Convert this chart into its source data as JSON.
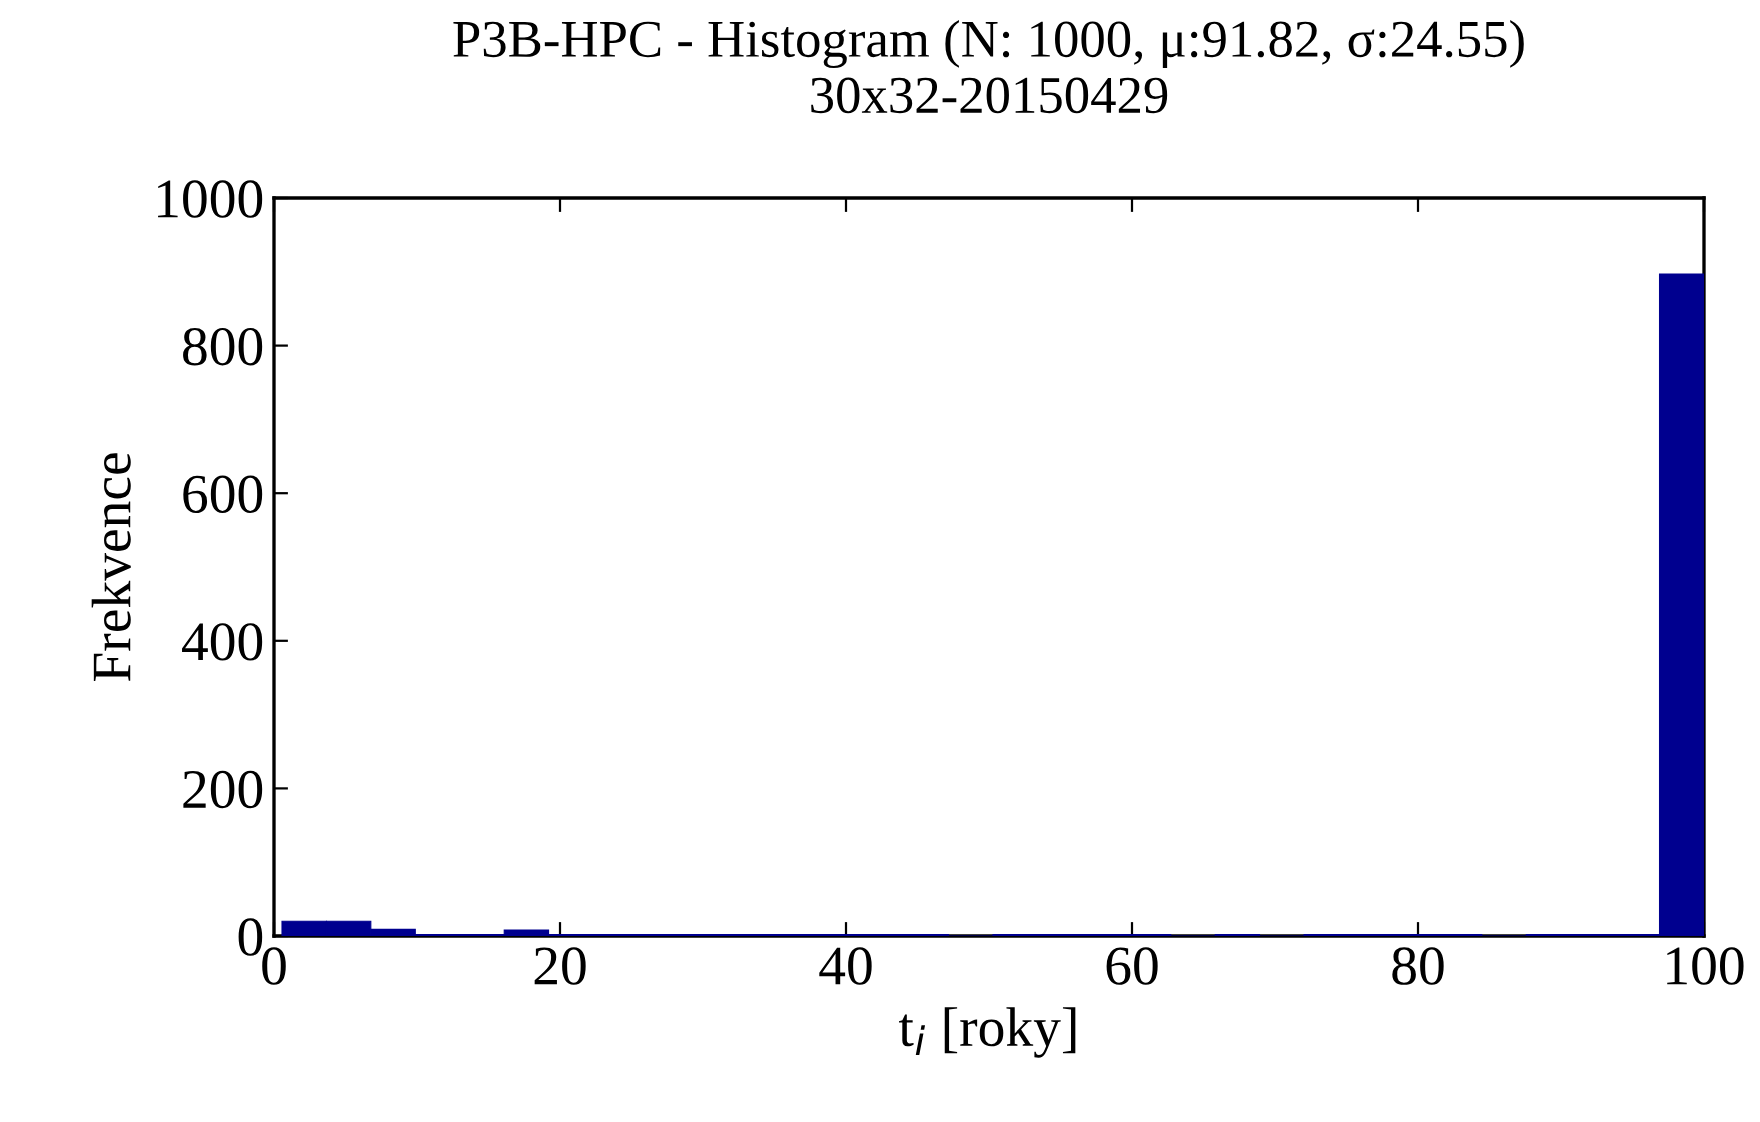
{
  "chart_data": {
    "type": "histogram",
    "title": "P3B-HPC - Histogram (N: 1000, μ:91.82, σ:24.55)",
    "subtitle": "30x32-20150429",
    "xlabel": "t$_{i}$ [roky]",
    "ylabel": "Frekvence",
    "color": "#00008f",
    "bins": [
      0.56,
      3.67,
      6.77,
      9.88,
      12.99,
      16.1,
      19.2,
      22.31,
      25.42,
      28.53,
      31.63,
      34.74,
      37.85,
      40.96,
      44.06,
      47.17,
      50.28,
      53.39,
      56.49,
      59.6,
      62.71,
      65.82,
      68.92,
      72.03,
      75.14,
      78.25,
      81.35,
      84.46,
      87.57,
      90.68,
      93.78,
      96.89,
      100
    ],
    "values": [
      20,
      20,
      9,
      2,
      2,
      8,
      2,
      2,
      2,
      2,
      2,
      2,
      2,
      2,
      2,
      0,
      2,
      2,
      2,
      2,
      0,
      2,
      0,
      2,
      2,
      2,
      2,
      0,
      2,
      2,
      2,
      897
    ],
    "xlim": [
      0,
      100
    ],
    "xticks": [
      0,
      20,
      40,
      60,
      80,
      100
    ],
    "ylim": [
      0,
      1000
    ],
    "yticks": [
      0,
      200,
      400,
      600,
      800,
      1000
    ],
    "grid": false
  }
}
